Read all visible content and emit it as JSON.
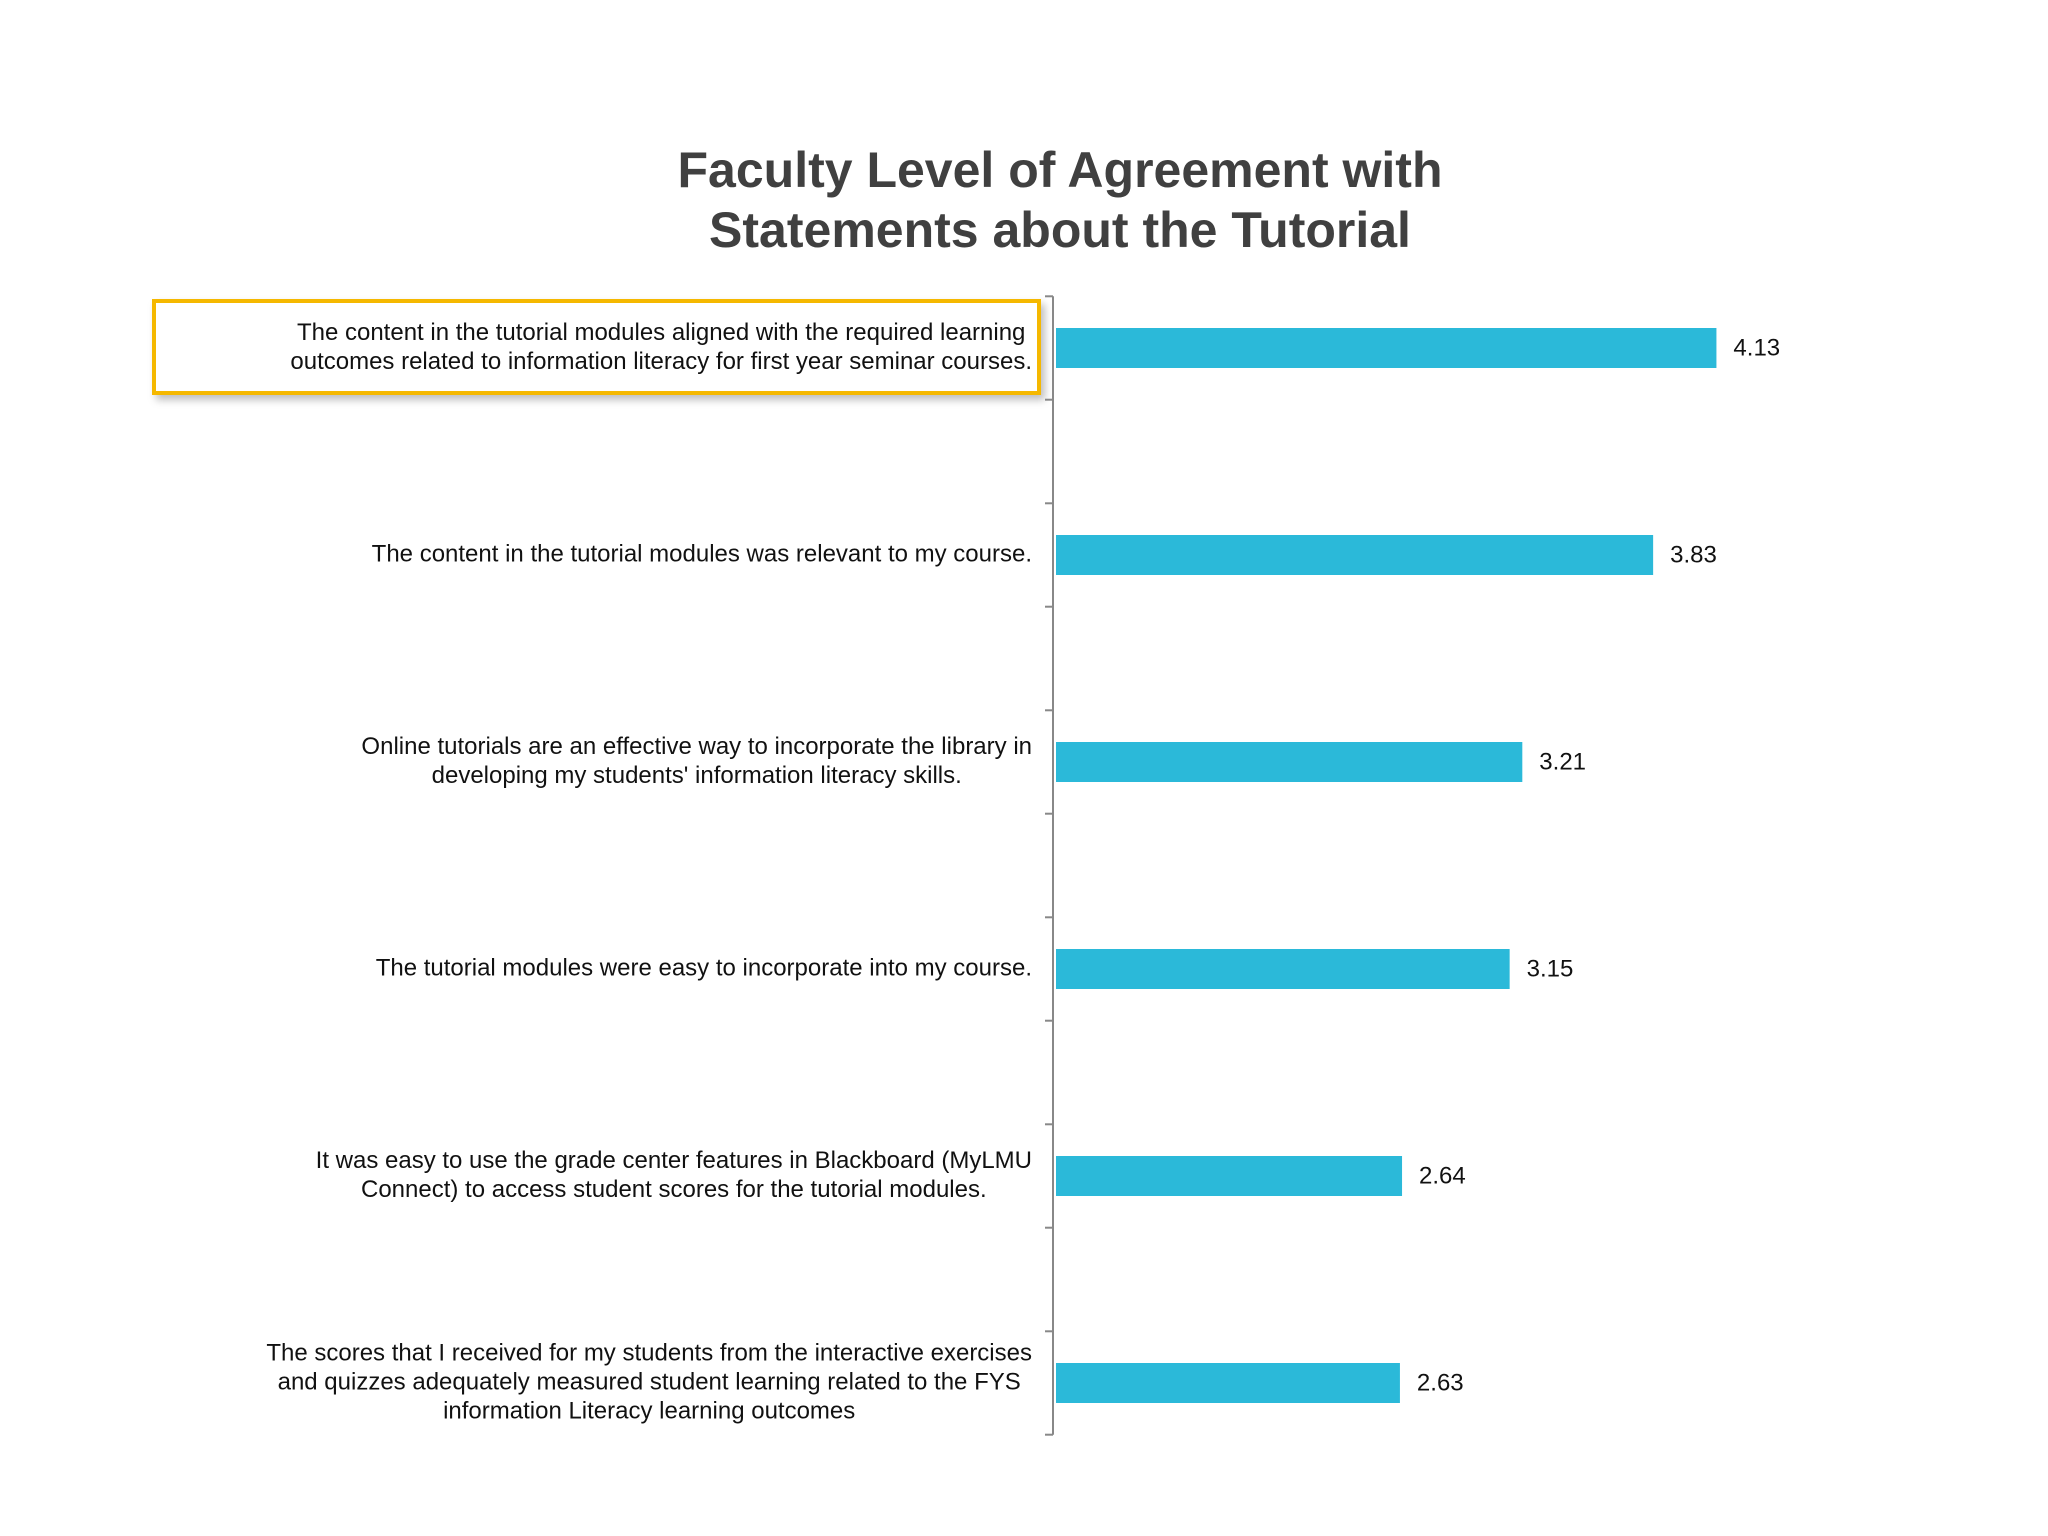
{
  "chart_data": {
    "type": "barh",
    "title": [
      "Faculty Level of Agreement with",
      "Statements about the Tutorial"
    ],
    "categories": [
      [
        "The content in the tutorial modules aligned with the required learning",
        "outcomes related to information literacy for first year seminar courses."
      ],
      [
        "The content in the tutorial modules was relevant to my course."
      ],
      [
        "Online tutorials are an effective way to incorporate the library in",
        "developing my students' information literacy skills."
      ],
      [
        "The tutorial modules were easy to incorporate into my course."
      ],
      [
        "It was easy to use the grade center features in Blackboard (MyLMU",
        "Connect) to access student scores for the tutorial modules."
      ],
      [
        "The scores that I received for my students from the interactive exercises",
        "and quizzes adequately measured student learning related to the  FYS",
        "information Literacy learning outcomes"
      ]
    ],
    "values": [
      4.13,
      3.83,
      3.21,
      3.15,
      2.64,
      2.63
    ],
    "color": "#2bb9d9",
    "xlim": [
      1,
      5
    ]
  }
}
